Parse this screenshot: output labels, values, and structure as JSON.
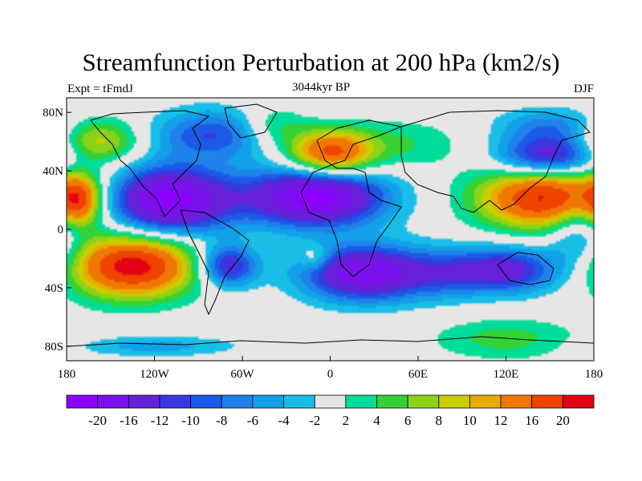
{
  "title": "Streamfunction Perturbation at 200 hPa (km2/s)",
  "left_label": "Expt = tFmdJ",
  "center_label": "3044kyr BP",
  "right_label": "DJF",
  "map": {
    "projection": "cylindrical-equidistant",
    "lon_range": [
      -180,
      180
    ],
    "lat_range": [
      -90,
      90
    ],
    "missing_color": "#e6e6e6",
    "lat_ticks": [
      {
        "lat": 80,
        "label": "80N"
      },
      {
        "lat": 40,
        "label": "40N"
      },
      {
        "lat": 0,
        "label": "0"
      },
      {
        "lat": -40,
        "label": "40S"
      },
      {
        "lat": -80,
        "label": "80S"
      }
    ],
    "lon_ticks": [
      {
        "lon": -180,
        "label": "180"
      },
      {
        "lon": -120,
        "label": "120W"
      },
      {
        "lon": -60,
        "label": "60W"
      },
      {
        "lon": 0,
        "label": "0"
      },
      {
        "lon": 60,
        "label": "60E"
      },
      {
        "lon": 120,
        "label": "120E"
      },
      {
        "lon": 180,
        "label": "180"
      }
    ],
    "anomaly_centers": [
      {
        "lon": -110,
        "lat": 20,
        "value": -22,
        "rx": 30,
        "ry": 16
      },
      {
        "lon": -135,
        "lat": -25,
        "value": 22,
        "rx": 30,
        "ry": 15
      },
      {
        "lon": -10,
        "lat": 22,
        "value": -22,
        "rx": 33,
        "ry": 14
      },
      {
        "lon": 25,
        "lat": -30,
        "value": -20,
        "rx": 30,
        "ry": 13
      },
      {
        "lon": 150,
        "lat": 22,
        "value": 22,
        "rx": 33,
        "ry": 15
      },
      {
        "lon": 0,
        "lat": 52,
        "value": 18,
        "rx": 20,
        "ry": 11
      },
      {
        "lon": 120,
        "lat": -28,
        "value": -14,
        "rx": 24,
        "ry": 11
      },
      {
        "lon": 150,
        "lat": 50,
        "value": -16,
        "rx": 25,
        "ry": 11
      },
      {
        "lon": -160,
        "lat": 60,
        "value": 10,
        "rx": 22,
        "ry": 11
      },
      {
        "lon": -70,
        "lat": -25,
        "value": -14,
        "rx": 14,
        "ry": 10
      },
      {
        "lon": -80,
        "lat": 65,
        "value": -10,
        "rx": 30,
        "ry": 12
      },
      {
        "lon": 50,
        "lat": 58,
        "value": 4,
        "rx": 30,
        "ry": 12
      },
      {
        "lon": -40,
        "lat": 70,
        "value": 6,
        "rx": 16,
        "ry": 10
      },
      {
        "lon": 150,
        "lat": 72,
        "value": -6,
        "rx": 25,
        "ry": 8
      },
      {
        "lon": -120,
        "lat": -80,
        "value": -5,
        "rx": 40,
        "ry": 5
      },
      {
        "lon": 120,
        "lat": -75,
        "value": 5,
        "rx": 35,
        "ry": 10
      },
      {
        "lon": 170,
        "lat": 0,
        "value": -8,
        "rx": 15,
        "ry": 20
      },
      {
        "lon": -172,
        "lat": 20,
        "value": 14,
        "rx": 10,
        "ry": 12
      },
      {
        "lon": -10,
        "lat": -20,
        "value": 5,
        "rx": 8,
        "ry": 6
      },
      {
        "lon": 80,
        "lat": -30,
        "value": -6,
        "rx": 18,
        "ry": 12
      }
    ]
  },
  "colorbar": {
    "colors": [
      "#8c00ff",
      "#7a10ec",
      "#6520d8",
      "#3838e0",
      "#1a5ae6",
      "#1e82ea",
      "#12a0e8",
      "#18bee6",
      "#e6e6e6",
      "#00dc9a",
      "#34d236",
      "#8cd218",
      "#cacd00",
      "#e6ac00",
      "#f07800",
      "#ee4400",
      "#e60014"
    ],
    "labels": [
      "-20",
      "-16",
      "-12",
      "-10",
      "-8",
      "-6",
      "-4",
      "-2",
      "2",
      "4",
      "6",
      "8",
      "10",
      "12",
      "16",
      "20"
    ]
  }
}
